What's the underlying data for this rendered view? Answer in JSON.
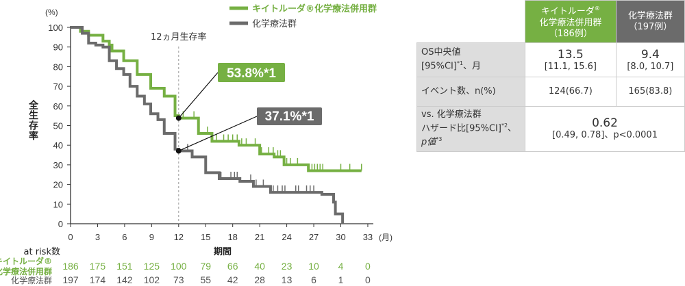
{
  "chart_data": {
    "type": "line",
    "subtype": "kaplan-meier",
    "y_unit": "(%)",
    "ylabel": "全生存率",
    "xlabel": "期間",
    "x_unit": "(月)",
    "xlim": [
      0,
      33
    ],
    "ylim": [
      0,
      100
    ],
    "xticks": [
      0,
      3,
      6,
      9,
      12,
      15,
      18,
      21,
      24,
      27,
      30,
      33
    ],
    "yticks": [
      0,
      10,
      20,
      30,
      40,
      50,
      60,
      70,
      80,
      90,
      100
    ],
    "grid": false,
    "legend_position": "top",
    "annotation_line": {
      "x": 12,
      "label": "12ヵ月生存率"
    },
    "series": [
      {
        "name": "キイトルーダ®化学療法併用群",
        "color": "#76b043",
        "points": [
          [
            0,
            100
          ],
          [
            1.1,
            98
          ],
          [
            2,
            96
          ],
          [
            3.6,
            93
          ],
          [
            4.3,
            91
          ],
          [
            4.6,
            88
          ],
          [
            5.9,
            83
          ],
          [
            7.4,
            76
          ],
          [
            8.9,
            69
          ],
          [
            10.4,
            65
          ],
          [
            11.6,
            55
          ],
          [
            12,
            53.8
          ],
          [
            14.2,
            46
          ],
          [
            15.7,
            42
          ],
          [
            18.7,
            40
          ],
          [
            21,
            35.5
          ],
          [
            22.6,
            34
          ],
          [
            23.7,
            30
          ],
          [
            26.4,
            27
          ],
          [
            32.3,
            27
          ]
        ],
        "censored": [
          12.5,
          13.7,
          15.2,
          16.2,
          17,
          17.5,
          18,
          18.5,
          19,
          19.5,
          20.5,
          21.2,
          22,
          22.5,
          23,
          23.3,
          24,
          24.4,
          25.2,
          26.5,
          26.8,
          27.1,
          27.4,
          27.7,
          28,
          30,
          31,
          32.3
        ],
        "callout": "53.8%*1"
      },
      {
        "name": "化学療法群",
        "color": "#6b6b6b",
        "points": [
          [
            0,
            100
          ],
          [
            1.3,
            97
          ],
          [
            2,
            92
          ],
          [
            2.8,
            91
          ],
          [
            3.6,
            90
          ],
          [
            4.3,
            83
          ],
          [
            5.1,
            79
          ],
          [
            5.9,
            76
          ],
          [
            6.6,
            70
          ],
          [
            7.4,
            65
          ],
          [
            8.2,
            61
          ],
          [
            8.9,
            56
          ],
          [
            9.7,
            53
          ],
          [
            10.4,
            46
          ],
          [
            11.6,
            38
          ],
          [
            12,
            37.1
          ],
          [
            13.5,
            34
          ],
          [
            15,
            26
          ],
          [
            16.5,
            23
          ],
          [
            18.8,
            21.6
          ],
          [
            20.3,
            19
          ],
          [
            22.2,
            16
          ],
          [
            27.9,
            15
          ],
          [
            29.2,
            11
          ],
          [
            29.4,
            5
          ],
          [
            30.2,
            0
          ]
        ],
        "censored": [
          13,
          16.7,
          17.8,
          18.2,
          18.5,
          20,
          20.6,
          21.4,
          22.5,
          23,
          23.5,
          23.8,
          25,
          25.3,
          26.2,
          26.6,
          27,
          29.2
        ],
        "callout": "37.1%*1"
      }
    ],
    "at_risk": {
      "label": "at risk数",
      "rows": [
        {
          "name": "キイトルーダ®",
          "name2": "化学療法併用群",
          "values": [
            186,
            175,
            151,
            125,
            100,
            79,
            66,
            40,
            23,
            10,
            4,
            0
          ]
        },
        {
          "name": "化学療法群",
          "values": [
            197,
            174,
            142,
            102,
            73,
            55,
            42,
            28,
            13,
            6,
            1,
            0
          ]
        }
      ]
    }
  },
  "table": {
    "head": {
      "g1": "キイトルーダ",
      "g1sup": "®",
      "g2": "化学療法併用群",
      "g3": "（186例）",
      "k1": "化学療法群",
      "k2": "（197例）"
    },
    "rows": [
      {
        "l1": "OS中央値",
        "l2": "[95%CI]",
        "l2sup": "*1",
        "l2b": "、月",
        "g": "13.5",
        "gci": "[11.1, 15.6]",
        "k": "9.4",
        "kci": "[8.0, 10.7]"
      },
      {
        "l1": "イベント数、n(%)",
        "g": "124(66.7)",
        "k": "165(83.8)"
      },
      {
        "l1": "vs. 化学療法群",
        "l2": "ハザード比[95%CI]",
        "l2sup": "*2",
        "l2b": "、",
        "l3": "p値",
        "l3sup": "*3",
        "v": "0.62",
        "vci": "[0.49, 0.78]、p<0.0001"
      }
    ]
  }
}
